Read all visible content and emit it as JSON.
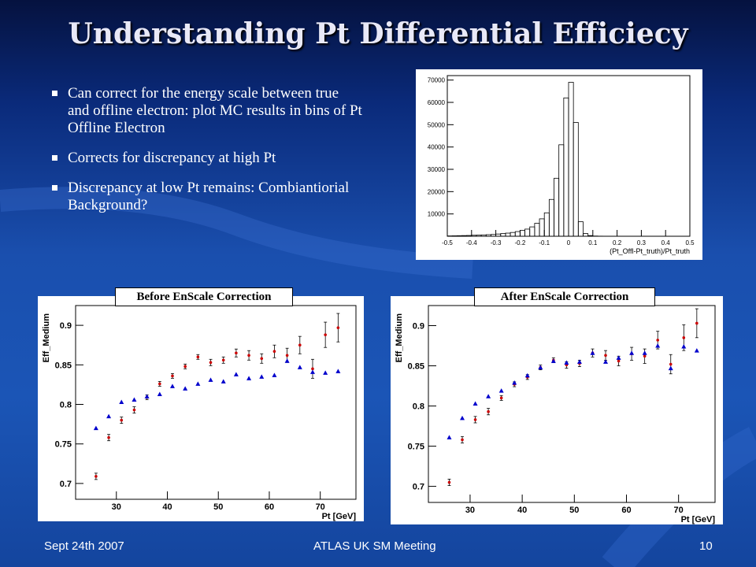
{
  "title": "Understanding Pt Differential Efficiecy",
  "bullets": [
    "Can correct for the energy scale between true and offline electron: plot MC results in bins of Pt Offline Electron",
    "Corrects for discrepancy at high Pt",
    "Discrepancy at low Pt remains: Combiantiorial Background?"
  ],
  "captions": {
    "before": "Before EnScale Correction",
    "after": "After EnScale Correction"
  },
  "footer": {
    "left": "Sept 24th 2007",
    "center": "ATLAS UK SM Meeting",
    "right": "10"
  },
  "colors": {
    "red_series": "#cc0000",
    "blue_series": "#0000cc",
    "histogram": "#000000"
  },
  "chart_data": [
    {
      "type": "bar",
      "title": "",
      "xlabel": "(Pt_Offl-Pt_truth)/Pt_truth",
      "ylabel": "",
      "xlim": [
        -0.5,
        0.5
      ],
      "ylim": [
        0,
        72000
      ],
      "xticks": [
        -0.5,
        -0.4,
        -0.3,
        -0.2,
        -0.1,
        0,
        0.1,
        0.2,
        0.3,
        0.4,
        0.5
      ],
      "yticks": [
        10000,
        20000,
        30000,
        40000,
        50000,
        60000,
        70000
      ],
      "bin_edges": [
        -0.5,
        -0.48,
        -0.46,
        -0.44,
        -0.42,
        -0.4,
        -0.38,
        -0.36,
        -0.34,
        -0.32,
        -0.3,
        -0.28,
        -0.26,
        -0.24,
        -0.22,
        -0.2,
        -0.18,
        -0.16,
        -0.14,
        -0.12,
        -0.1,
        -0.08,
        -0.06,
        -0.04,
        -0.02,
        0.0,
        0.02,
        0.04,
        0.06,
        0.08,
        0.1,
        0.12,
        0.14,
        0.16,
        0.18,
        0.2,
        0.22,
        0.24,
        0.26,
        0.28,
        0.3,
        0.32,
        0.34,
        0.36,
        0.38,
        0.4,
        0.42,
        0.44,
        0.46,
        0.48,
        0.5
      ],
      "values": [
        150,
        200,
        250,
        300,
        350,
        450,
        500,
        600,
        700,
        800,
        1000,
        1200,
        1400,
        1700,
        2100,
        2600,
        3200,
        4200,
        5800,
        7800,
        10500,
        16500,
        26000,
        41000,
        62000,
        69000,
        51000,
        6500,
        1200,
        300,
        100,
        50,
        30,
        20,
        10,
        10,
        0,
        0,
        0,
        0,
        0,
        0,
        0,
        0,
        0,
        0,
        0,
        0,
        0,
        0
      ]
    },
    {
      "type": "scatter",
      "title": "",
      "xlabel": "Pt [GeV]",
      "ylabel": "Eff_Medium",
      "xlim": [
        22,
        77
      ],
      "ylim": [
        0.68,
        0.925
      ],
      "xticks": [
        30,
        40,
        50,
        60,
        70
      ],
      "yticks": [
        0.7,
        0.75,
        0.8,
        0.85,
        0.9
      ],
      "series": [
        {
          "marker": "circle",
          "color": "#cc0000",
          "x": [
            26,
            28.5,
            31,
            33.5,
            36,
            38.5,
            41,
            43.5,
            46,
            48.5,
            51,
            53.5,
            56,
            58.5,
            61,
            63.5,
            66,
            68.5,
            71,
            73.5
          ],
          "y": [
            0.709,
            0.758,
            0.78,
            0.793,
            0.809,
            0.826,
            0.836,
            0.848,
            0.86,
            0.853,
            0.856,
            0.865,
            0.862,
            0.858,
            0.867,
            0.862,
            0.875,
            0.845,
            0.888,
            0.897
          ],
          "err": [
            0.004,
            0.004,
            0.004,
            0.004,
            0.003,
            0.003,
            0.003,
            0.003,
            0.003,
            0.004,
            0.004,
            0.005,
            0.006,
            0.006,
            0.008,
            0.009,
            0.011,
            0.012,
            0.016,
            0.018
          ]
        },
        {
          "marker": "triangle",
          "color": "#0000cc",
          "x": [
            26,
            28.5,
            31,
            33.5,
            36,
            38.5,
            41,
            43.5,
            46,
            48.5,
            51,
            53.5,
            56,
            58.5,
            61,
            63.5,
            66,
            68.5,
            71,
            73.5
          ],
          "y": [
            0.77,
            0.785,
            0.803,
            0.806,
            0.81,
            0.813,
            0.823,
            0.82,
            0.826,
            0.831,
            0.829,
            0.838,
            0.833,
            0.835,
            0.837,
            0.855,
            0.847,
            0.841,
            0.84,
            0.842
          ]
        }
      ]
    },
    {
      "type": "scatter",
      "title": "",
      "xlabel": "Pt [GeV]",
      "ylabel": "Eff_Medium",
      "xlim": [
        22,
        77
      ],
      "ylim": [
        0.68,
        0.925
      ],
      "xticks": [
        30,
        40,
        50,
        60,
        70
      ],
      "yticks": [
        0.7,
        0.75,
        0.8,
        0.85,
        0.9
      ],
      "series": [
        {
          "marker": "circle",
          "color": "#cc0000",
          "x": [
            26,
            28.5,
            31,
            33.5,
            36,
            38.5,
            41,
            43.5,
            46,
            48.5,
            51,
            53.5,
            56,
            58.5,
            61,
            63.5,
            66,
            68.5,
            71,
            73.5
          ],
          "y": [
            0.705,
            0.758,
            0.783,
            0.793,
            0.81,
            0.827,
            0.836,
            0.848,
            0.857,
            0.851,
            0.853,
            0.866,
            0.863,
            0.856,
            0.865,
            0.862,
            0.882,
            0.852,
            0.885,
            0.903
          ],
          "err": [
            0.004,
            0.004,
            0.004,
            0.004,
            0.003,
            0.003,
            0.003,
            0.003,
            0.003,
            0.004,
            0.004,
            0.005,
            0.006,
            0.006,
            0.008,
            0.009,
            0.011,
            0.012,
            0.016,
            0.018
          ]
        },
        {
          "marker": "triangle",
          "color": "#0000cc",
          "x": [
            26,
            28.5,
            31,
            33.5,
            36,
            38.5,
            41,
            43.5,
            46,
            48.5,
            51,
            53.5,
            56,
            58.5,
            61,
            63.5,
            66,
            68.5,
            71,
            73.5
          ],
          "y": [
            0.761,
            0.785,
            0.803,
            0.812,
            0.819,
            0.829,
            0.838,
            0.848,
            0.856,
            0.854,
            0.855,
            0.866,
            0.855,
            0.86,
            0.866,
            0.866,
            0.875,
            0.847,
            0.874,
            0.869
          ]
        }
      ]
    }
  ]
}
